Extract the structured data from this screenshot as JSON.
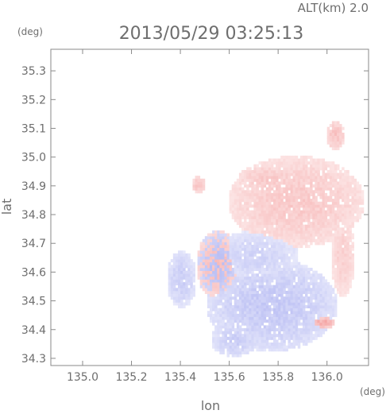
{
  "header": {
    "altitude_label": "ALT(km) 2.0",
    "timestamp": "2013/05/29 03:25:13"
  },
  "colors": {
    "frame": "#8a8a8a",
    "text": "#6e6e6e",
    "positive": "#f28a8a",
    "negative": "#9aa0ee",
    "neutral": "#ffffff"
  },
  "chart_data": {
    "type": "heatmap",
    "title": "2013/05/29 03:25:13",
    "subtitle": "ALT(km) 2.0",
    "xlabel": "lon",
    "ylabel": "lat",
    "x_unit": "(deg)",
    "y_unit": "(deg)",
    "xlim": [
      134.87,
      136.17
    ],
    "ylim": [
      34.275,
      35.375
    ],
    "xticks": [
      135.0,
      135.2,
      135.4,
      135.6,
      135.8,
      136.0
    ],
    "xtick_labels": [
      "135.0",
      "135.2",
      "135.4",
      "135.6",
      "135.8",
      "136.0"
    ],
    "yticks": [
      34.3,
      34.4,
      34.5,
      34.6,
      34.7,
      34.8,
      34.9,
      35.0,
      35.1,
      35.2,
      35.3
    ],
    "ytick_labels": [
      "34.3",
      "34.4",
      "34.5",
      "34.6",
      "34.7",
      "34.8",
      "34.9",
      "35.0",
      "35.1",
      "35.2",
      "35.3"
    ],
    "grid": false,
    "colorscale": "blue-white-red (diverging)",
    "regions": [
      {
        "name": "north-east positive lobe",
        "sign": "positive",
        "center": [
          135.87,
          34.84
        ],
        "radius": [
          0.28,
          0.16
        ],
        "intensity": 0.45
      },
      {
        "name": "far north-east positive patch",
        "sign": "positive",
        "center": [
          136.03,
          35.07
        ],
        "radius": [
          0.04,
          0.05
        ],
        "intensity": 0.5
      },
      {
        "name": "upper ridge positive band",
        "sign": "positive",
        "center": [
          135.75,
          34.92
        ],
        "radius": [
          0.12,
          0.05
        ],
        "intensity": 0.45
      },
      {
        "name": "east positive strip",
        "sign": "positive",
        "center": [
          136.06,
          34.65
        ],
        "radius": [
          0.05,
          0.14
        ],
        "intensity": 0.4
      },
      {
        "name": "south negative lobe",
        "sign": "negative",
        "center": [
          135.77,
          34.48
        ],
        "radius": [
          0.27,
          0.16
        ],
        "intensity": 0.55
      },
      {
        "name": "central negative lobe",
        "sign": "negative",
        "center": [
          135.7,
          34.65
        ],
        "radius": [
          0.18,
          0.09
        ],
        "intensity": 0.45
      },
      {
        "name": "west negative patch",
        "sign": "negative",
        "center": [
          135.4,
          34.57
        ],
        "radius": [
          0.06,
          0.1
        ],
        "intensity": 0.5
      },
      {
        "name": "lower negative tail",
        "sign": "negative",
        "center": [
          135.62,
          34.36
        ],
        "radius": [
          0.1,
          0.06
        ],
        "intensity": 0.5
      },
      {
        "name": "cluttered mixed zone",
        "sign": "mixed",
        "center": [
          135.55,
          34.62
        ],
        "radius": [
          0.09,
          0.12
        ],
        "intensity": 0.6
      },
      {
        "name": "small northern positive specks",
        "sign": "positive",
        "center": [
          135.47,
          34.9
        ],
        "radius": [
          0.03,
          0.03
        ],
        "intensity": 0.5
      },
      {
        "name": "southeast positive streak",
        "sign": "positive",
        "center": [
          135.98,
          34.42
        ],
        "radius": [
          0.05,
          0.02
        ],
        "intensity": 0.7
      }
    ]
  }
}
